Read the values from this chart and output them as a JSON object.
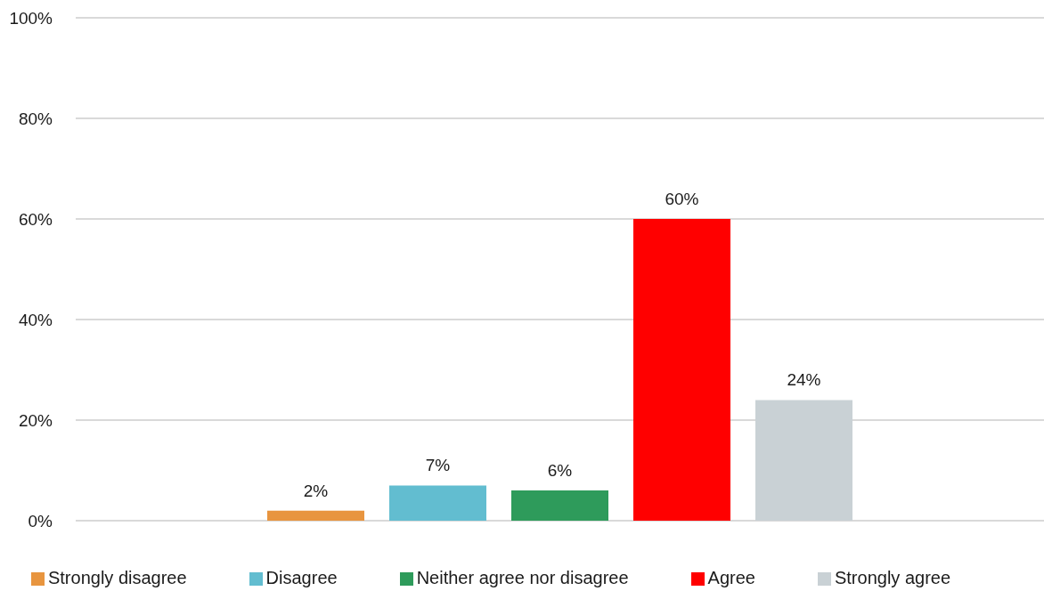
{
  "chart_data": {
    "type": "bar",
    "categories": [
      null
    ],
    "series": [
      {
        "name": "Strongly disagree",
        "color": "#e8953f",
        "values": [
          2
        ],
        "value_labels": [
          "2%"
        ]
      },
      {
        "name": "Disagree",
        "color": "#62bdd0",
        "values": [
          7
        ],
        "value_labels": [
          "7%"
        ]
      },
      {
        "name": "Neither agree nor disagree",
        "color": "#2e9b5b",
        "values": [
          6
        ],
        "value_labels": [
          "6%"
        ]
      },
      {
        "name": "Agree",
        "color": "#ff0000",
        "values": [
          60
        ],
        "value_labels": [
          "60%"
        ]
      },
      {
        "name": "Strongly agree",
        "color": "#c9d1d5",
        "values": [
          24
        ],
        "value_labels": [
          "24%"
        ]
      }
    ],
    "ylim": [
      0,
      100
    ],
    "yticks": [
      {
        "value": 0,
        "label": "0%"
      },
      {
        "value": 20,
        "label": "20%"
      },
      {
        "value": 40,
        "label": "40%"
      },
      {
        "value": 60,
        "label": "60%"
      },
      {
        "value": 80,
        "label": "80%"
      },
      {
        "value": 100,
        "label": "100%"
      }
    ],
    "grid": "y",
    "legend": "bottom"
  }
}
